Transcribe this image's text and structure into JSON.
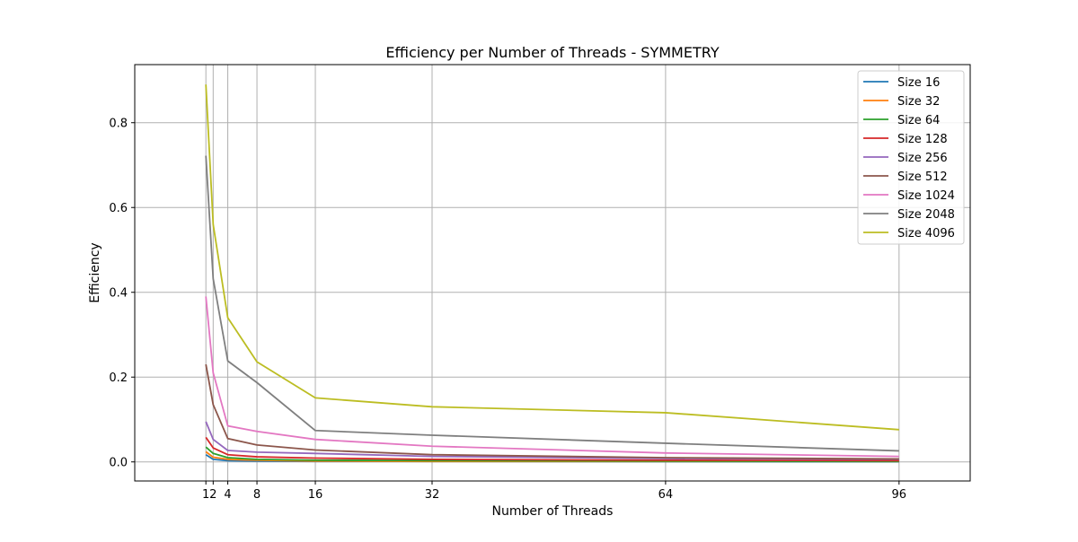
{
  "chart_data": {
    "type": "line",
    "title": "Efficiency per Number of Threads - SYMMETRY",
    "xlabel": "Number of Threads",
    "ylabel": "Efficiency",
    "x": [
      1,
      2,
      4,
      8,
      16,
      32,
      64,
      96
    ],
    "xticks": [
      1,
      2,
      4,
      8,
      16,
      32,
      64,
      96
    ],
    "xtick_labels": [
      "1",
      "2",
      "4",
      "8",
      "16",
      "32",
      "64",
      "96"
    ],
    "yticks": [
      0.0,
      0.2,
      0.4,
      0.6,
      0.8
    ],
    "ytick_labels": [
      "0.0",
      "0.2",
      "0.4",
      "0.6",
      "0.8"
    ],
    "xlim": [
      -8.75,
      105.75
    ],
    "ylim": [
      -0.045,
      0.937
    ],
    "grid": true,
    "legend_position": "top-right",
    "series": [
      {
        "name": "Size 16",
        "color": "#1f77b4",
        "values": [
          0.017,
          0.006,
          0.003,
          0.002,
          0.001,
          0.001,
          0.0005,
          0.0003
        ]
      },
      {
        "name": "Size 32",
        "color": "#ff7f0e",
        "values": [
          0.024,
          0.011,
          0.006,
          0.004,
          0.002,
          0.001,
          0.001,
          0.001
        ]
      },
      {
        "name": "Size 64",
        "color": "#2ca02c",
        "values": [
          0.035,
          0.02,
          0.01,
          0.006,
          0.004,
          0.003,
          0.002,
          0.001
        ]
      },
      {
        "name": "Size 128",
        "color": "#d62728",
        "values": [
          0.058,
          0.033,
          0.017,
          0.012,
          0.009,
          0.006,
          0.004,
          0.003
        ]
      },
      {
        "name": "Size 256",
        "color": "#9467bd",
        "values": [
          0.095,
          0.053,
          0.027,
          0.023,
          0.02,
          0.013,
          0.008,
          0.006
        ]
      },
      {
        "name": "Size 512",
        "color": "#8c564b",
        "values": [
          0.23,
          0.135,
          0.055,
          0.04,
          0.028,
          0.017,
          0.01,
          0.007
        ]
      },
      {
        "name": "Size 1024",
        "color": "#e377c2",
        "values": [
          0.39,
          0.21,
          0.085,
          0.072,
          0.053,
          0.037,
          0.021,
          0.013
        ]
      },
      {
        "name": "Size 2048",
        "color": "#7f7f7f",
        "values": [
          0.722,
          0.432,
          0.238,
          0.187,
          0.074,
          0.063,
          0.044,
          0.026
        ]
      },
      {
        "name": "Size 4096",
        "color": "#bcbd22",
        "values": [
          0.89,
          0.56,
          0.34,
          0.236,
          0.151,
          0.13,
          0.116,
          0.076
        ]
      }
    ]
  }
}
